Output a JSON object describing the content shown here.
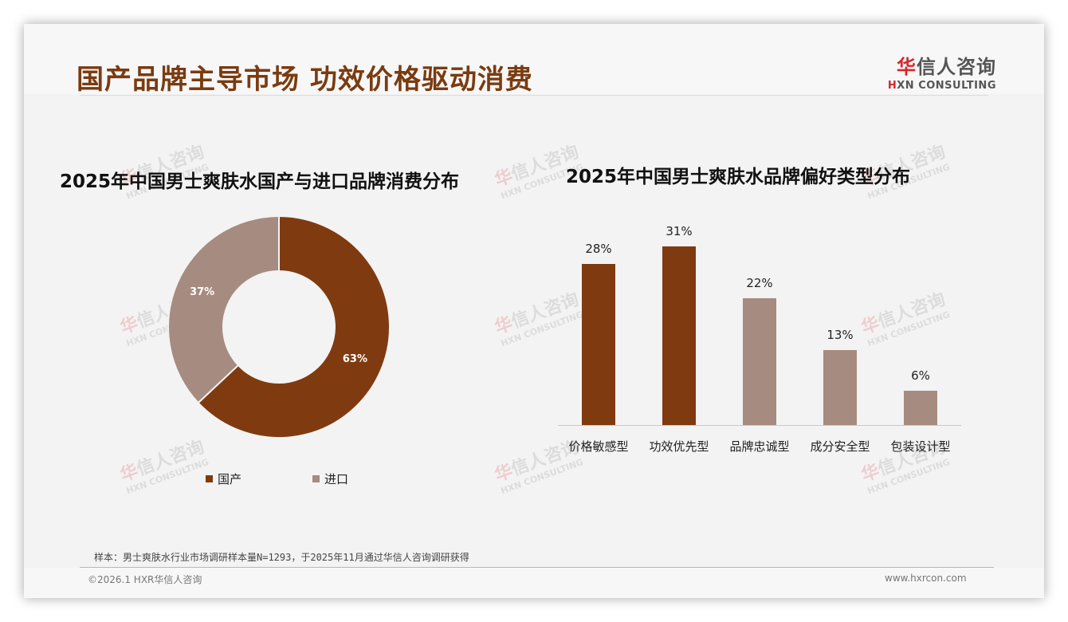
{
  "header": {
    "title": "国产品牌主导市场 功效价格驱动消费",
    "logo_cn_first": "华",
    "logo_cn_rest": "信人咨询",
    "logo_en_first": "H",
    "logo_en_rest": "XN CONSULTING"
  },
  "colors": {
    "accent_dark": "#7f3b0f",
    "accent_light": "#a68b80",
    "title": "#7a3b10",
    "logo_red": "#d7262b"
  },
  "watermark": {
    "cn_first": "华",
    "cn_rest": "信人咨询",
    "en": "HXN CONSULTING"
  },
  "left_chart": {
    "title": "2025年中国男士爽肤水国产与进口品牌消费分布",
    "slices": [
      {
        "label": "国产",
        "value_label": "63%",
        "value": 63,
        "color": "#7f3b0f"
      },
      {
        "label": "进口",
        "value_label": "37%",
        "value": 37,
        "color": "#a68b80"
      }
    ]
  },
  "right_chart": {
    "title": "2025年中国男士爽肤水品牌偏好类型分布",
    "bars": [
      {
        "label": "价格敏感型",
        "value_label": "28%",
        "value": 28,
        "color": "#7f3b0f"
      },
      {
        "label": "功效优先型",
        "value_label": "31%",
        "value": 31,
        "color": "#7f3b0f"
      },
      {
        "label": "品牌忠诚型",
        "value_label": "22%",
        "value": 22,
        "color": "#a68b80"
      },
      {
        "label": "成分安全型",
        "value_label": "13%",
        "value": 13,
        "color": "#a68b80"
      },
      {
        "label": "包装设计型",
        "value_label": "6%",
        "value": 6,
        "color": "#a68b80"
      }
    ]
  },
  "chart_data": [
    {
      "type": "pie",
      "subtype": "donut",
      "title": "2025年中国男士爽肤水国产与进口品牌消费分布",
      "categories": [
        "国产",
        "进口"
      ],
      "values": [
        63,
        37
      ],
      "unit": "%",
      "legend_position": "bottom",
      "colors": [
        "#7f3b0f",
        "#a68b80"
      ]
    },
    {
      "type": "bar",
      "title": "2025年中国男士爽肤水品牌偏好类型分布",
      "categories": [
        "价格敏感型",
        "功效优先型",
        "品牌忠诚型",
        "成分安全型",
        "包装设计型"
      ],
      "values": [
        28,
        31,
        22,
        13,
        6
      ],
      "unit": "%",
      "xlabel": "",
      "ylabel": "",
      "grid": false,
      "legend_position": "none",
      "colors": [
        "#7f3b0f",
        "#7f3b0f",
        "#a68b80",
        "#a68b80",
        "#a68b80"
      ]
    }
  ],
  "footer": {
    "note": "样本：男士爽肤水行业市场调研样本量N=1293，于2025年11月通过华信人咨询调研获得",
    "copyright": "©2026.1 HXR华信人咨询",
    "website": "www.hxrcon.com"
  }
}
